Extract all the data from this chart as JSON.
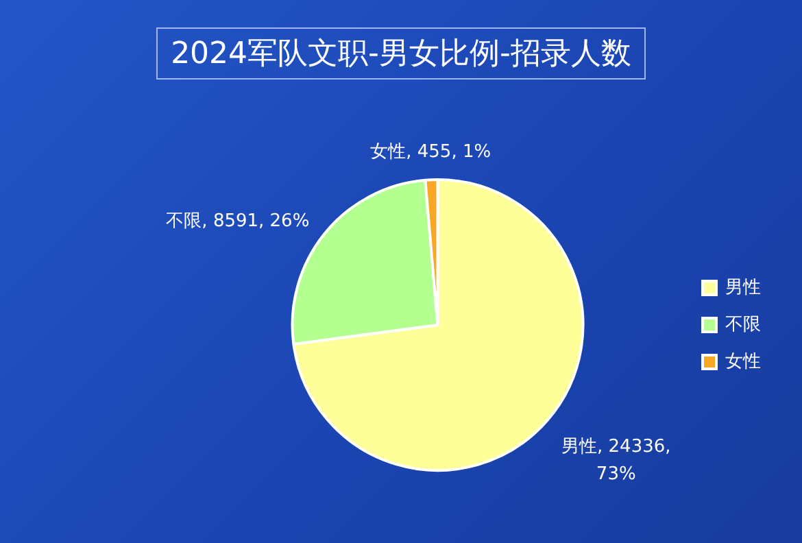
{
  "chart_data": {
    "type": "pie",
    "title": "2024军队文职-男女比例-招录人数",
    "categories": [
      "男性",
      "不限",
      "女性"
    ],
    "values": [
      24336,
      8591,
      455
    ],
    "colors": [
      "#ffff99",
      "#b3ff8f",
      "#f9a825"
    ],
    "value_labels": [
      ", 24336, 73%",
      ", 8591, 26%",
      ", 455, 1%"
    ],
    "legend": "right"
  }
}
